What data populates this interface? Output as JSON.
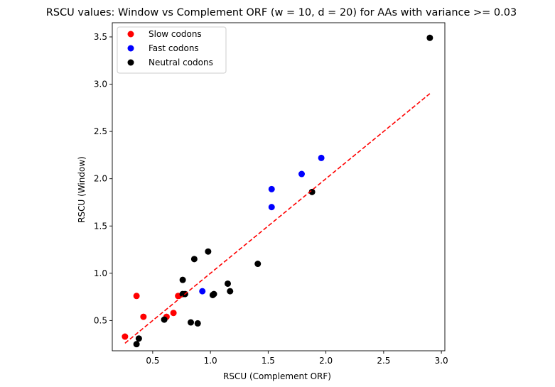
{
  "chart_data": {
    "type": "scatter",
    "title": "RSCU values: Window vs Complement ORF (w = 10, d = 20) for AAs with variance >= 0.03",
    "xlabel": "RSCU (Complement ORF)",
    "ylabel": "RSCU (Window)",
    "xlim": [
      0.15,
      3.03
    ],
    "ylim": [
      0.18,
      3.65
    ],
    "xticks": [
      0.5,
      1.0,
      1.5,
      2.0,
      2.5,
      3.0
    ],
    "xtick_labels": [
      "0.5",
      "1.0",
      "1.5",
      "2.0",
      "2.5",
      "3.0"
    ],
    "yticks": [
      0.5,
      1.0,
      1.5,
      2.0,
      2.5,
      3.0,
      3.5
    ],
    "ytick_labels": [
      "0.5",
      "1.0",
      "1.5",
      "2.0",
      "2.5",
      "3.0",
      "3.5"
    ],
    "grid": false,
    "legend_position": "top-left",
    "series": [
      {
        "name": "Slow codons",
        "color": "#ff0000",
        "points": [
          [
            0.26,
            0.33
          ],
          [
            0.36,
            0.76
          ],
          [
            0.42,
            0.54
          ],
          [
            0.62,
            0.54
          ],
          [
            0.68,
            0.58
          ],
          [
            0.72,
            0.76
          ]
        ]
      },
      {
        "name": "Fast codons",
        "color": "#0000ff",
        "points": [
          [
            0.93,
            0.81
          ],
          [
            1.53,
            1.89
          ],
          [
            1.53,
            1.7
          ],
          [
            1.79,
            2.05
          ],
          [
            1.96,
            2.22
          ]
        ]
      },
      {
        "name": "Neutral codons",
        "color": "#000000",
        "points": [
          [
            0.36,
            0.25
          ],
          [
            0.38,
            0.31
          ],
          [
            0.6,
            0.51
          ],
          [
            0.76,
            0.93
          ],
          [
            0.76,
            0.78
          ],
          [
            0.78,
            0.78
          ],
          [
            0.83,
            0.48
          ],
          [
            0.86,
            1.15
          ],
          [
            0.89,
            0.47
          ],
          [
            0.98,
            1.23
          ],
          [
            1.02,
            0.77
          ],
          [
            1.03,
            0.78
          ],
          [
            1.15,
            0.89
          ],
          [
            1.17,
            0.81
          ],
          [
            1.41,
            1.1
          ],
          [
            1.88,
            1.86
          ],
          [
            2.9,
            3.49
          ]
        ]
      }
    ],
    "fit_line": {
      "color": "#ff0000",
      "style": "dashed",
      "points": [
        [
          0.26,
          0.26
        ],
        [
          2.9,
          2.9
        ]
      ]
    }
  }
}
